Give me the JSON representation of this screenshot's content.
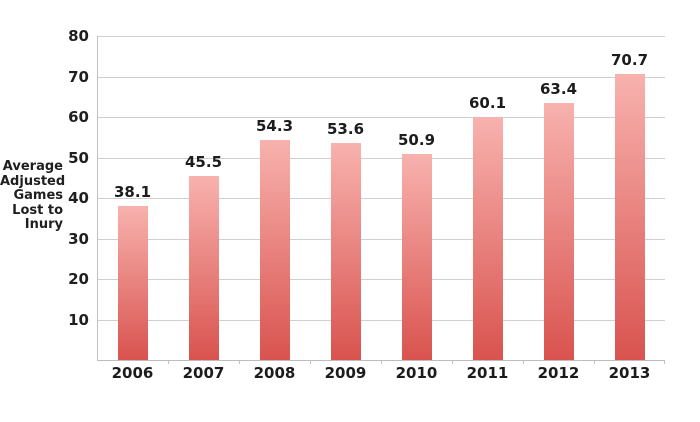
{
  "chart_data": {
    "type": "bar",
    "title": "",
    "categories": [
      "2006",
      "2007",
      "2008",
      "2009",
      "2010",
      "2011",
      "2012",
      "2013"
    ],
    "values": [
      38.1,
      45.5,
      54.3,
      53.6,
      50.9,
      60.1,
      63.4,
      70.7
    ],
    "ylabel": "Average Adjusted Games Lost to Inury",
    "ylabel_lines": [
      "Average",
      "Adjusted",
      "Games",
      "Lost to",
      "Inury"
    ],
    "yticks": [
      "80",
      "70",
      "60",
      "50",
      "40",
      "30",
      "20",
      "10"
    ],
    "ylim": [
      0,
      80
    ],
    "xlabel": "",
    "grid": true,
    "legend": "none",
    "colors": {
      "bar_gradient_top": "#f8b2ae",
      "bar_gradient_bottom": "#d9534f",
      "gridline": "#cfcfcf",
      "axis": "#c2c2c2",
      "text": "#1c1c1c",
      "background": "#ffffff"
    }
  }
}
